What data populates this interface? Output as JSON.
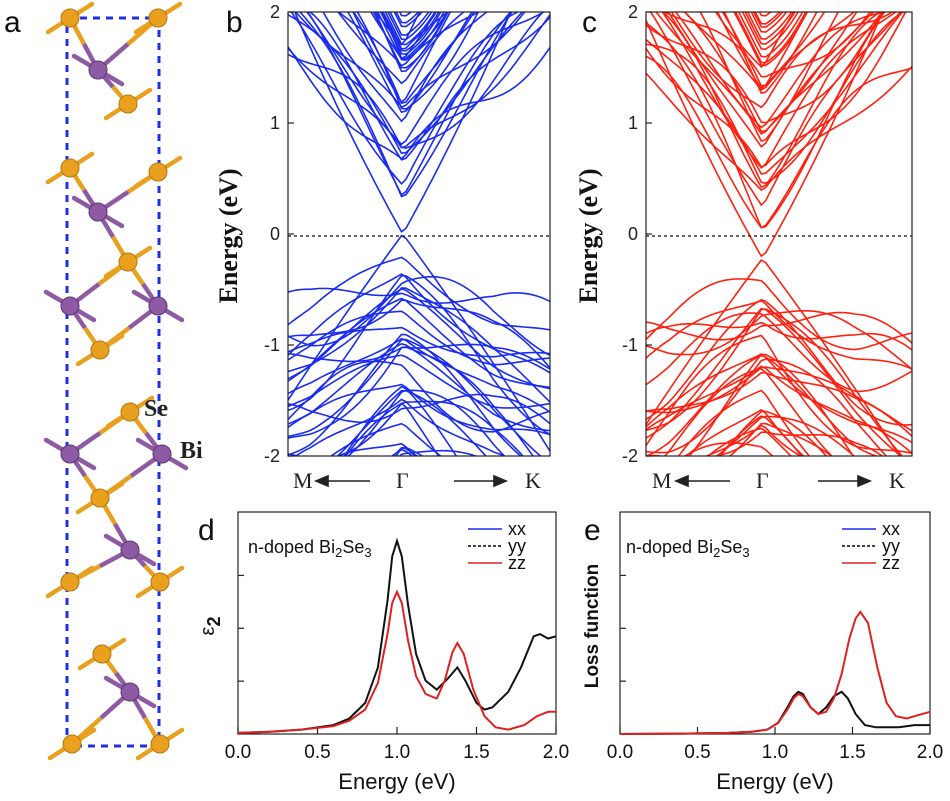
{
  "panel_labels": {
    "a": "a",
    "b": "b",
    "c": "c",
    "d": "d",
    "e": "e"
  },
  "structure": {
    "atom_labels": {
      "se": "Se",
      "bi": "Bi"
    },
    "colors": {
      "se": "#e8a01e",
      "bi": "#8e5aa3",
      "cell": "#1f2fe6"
    }
  },
  "chart_data": [
    {
      "id": "b",
      "type": "line",
      "subtype": "band-structure",
      "ylabel": "Energy (eV)",
      "ylim": [
        -2,
        2
      ],
      "yticks": [
        "2",
        "1",
        "0",
        "-1",
        "-2"
      ],
      "xticks": {
        "left": "M",
        "mid": "Γ",
        "right": "K"
      },
      "fermi_level": 0,
      "color": "#1a2cf0",
      "gap_at_gamma": 0.0
    },
    {
      "id": "c",
      "type": "line",
      "subtype": "band-structure",
      "ylabel": "Energy (eV)",
      "ylim": [
        -2,
        2
      ],
      "yticks": [
        "2",
        "1",
        "0",
        "-1",
        "-2"
      ],
      "xticks": {
        "left": "M",
        "mid": "Γ",
        "right": "K"
      },
      "fermi_level": 0,
      "color": "#ff2010",
      "dirac_point": -0.22
    },
    {
      "id": "d",
      "type": "line",
      "title": "n-doped Bi2Se3",
      "title_parts": {
        "pre": "n-doped Bi",
        "sub1": "2",
        "mid": "Se",
        "sub2": "3"
      },
      "xlabel": "Energy (eV)",
      "ylabel": "ε2",
      "ylabel_parts": {
        "main": "ε",
        "sub": "2"
      },
      "xlim": [
        0,
        2
      ],
      "xticks": [
        "0.0",
        "0.5",
        "1.0",
        "1.5",
        "2.0"
      ],
      "legend": [
        {
          "name": "xx",
          "color": "#1a2cf0",
          "dash": false
        },
        {
          "name": "yy",
          "color": "#000000",
          "dash": true
        },
        {
          "name": "zz",
          "color": "#e02020",
          "dash": false
        }
      ],
      "series": [
        {
          "name": "xx/yy",
          "color": "#111111",
          "points": [
            [
              0,
              0.005
            ],
            [
              0.2,
              0.01
            ],
            [
              0.4,
              0.02
            ],
            [
              0.6,
              0.04
            ],
            [
              0.7,
              0.07
            ],
            [
              0.8,
              0.14
            ],
            [
              0.88,
              0.3
            ],
            [
              0.94,
              0.6
            ],
            [
              0.97,
              0.8
            ],
            [
              1.0,
              0.87
            ],
            [
              1.03,
              0.8
            ],
            [
              1.07,
              0.58
            ],
            [
              1.12,
              0.36
            ],
            [
              1.18,
              0.24
            ],
            [
              1.25,
              0.2
            ],
            [
              1.32,
              0.25
            ],
            [
              1.38,
              0.3
            ],
            [
              1.43,
              0.24
            ],
            [
              1.5,
              0.14
            ],
            [
              1.55,
              0.11
            ],
            [
              1.6,
              0.12
            ],
            [
              1.7,
              0.19
            ],
            [
              1.78,
              0.3
            ],
            [
              1.86,
              0.44
            ],
            [
              1.9,
              0.45
            ],
            [
              1.95,
              0.43
            ],
            [
              2.0,
              0.44
            ]
          ]
        },
        {
          "name": "zz",
          "color": "#e02020",
          "points": [
            [
              0,
              0.005
            ],
            [
              0.2,
              0.01
            ],
            [
              0.4,
              0.02
            ],
            [
              0.6,
              0.035
            ],
            [
              0.7,
              0.06
            ],
            [
              0.8,
              0.11
            ],
            [
              0.88,
              0.23
            ],
            [
              0.94,
              0.45
            ],
            [
              0.97,
              0.59
            ],
            [
              1.0,
              0.64
            ],
            [
              1.03,
              0.59
            ],
            [
              1.07,
              0.42
            ],
            [
              1.12,
              0.26
            ],
            [
              1.18,
              0.18
            ],
            [
              1.25,
              0.16
            ],
            [
              1.3,
              0.24
            ],
            [
              1.35,
              0.37
            ],
            [
              1.38,
              0.41
            ],
            [
              1.42,
              0.36
            ],
            [
              1.48,
              0.2
            ],
            [
              1.55,
              0.08
            ],
            [
              1.62,
              0.03
            ],
            [
              1.7,
              0.02
            ],
            [
              1.8,
              0.04
            ],
            [
              1.88,
              0.08
            ],
            [
              1.95,
              0.1
            ],
            [
              2.0,
              0.1
            ]
          ]
        }
      ]
    },
    {
      "id": "e",
      "type": "line",
      "title": "n-doped Bi2Se3",
      "title_parts": {
        "pre": "n-doped Bi",
        "sub1": "2",
        "mid": "Se",
        "sub2": "3"
      },
      "xlabel": "Energy (eV)",
      "ylabel": "Loss function",
      "xlim": [
        0,
        2
      ],
      "xticks": [
        "0.0",
        "0.5",
        "1.0",
        "1.5",
        "2.0"
      ],
      "legend": [
        {
          "name": "xx",
          "color": "#1a2cf0",
          "dash": false
        },
        {
          "name": "yy",
          "color": "#000000",
          "dash": true
        },
        {
          "name": "zz",
          "color": "#e02020",
          "dash": false
        }
      ],
      "series": [
        {
          "name": "xx/yy",
          "color": "#111111",
          "points": [
            [
              0,
              0.0
            ],
            [
              0.4,
              0.002
            ],
            [
              0.7,
              0.005
            ],
            [
              0.85,
              0.01
            ],
            [
              0.95,
              0.02
            ],
            [
              1.02,
              0.05
            ],
            [
              1.08,
              0.12
            ],
            [
              1.12,
              0.17
            ],
            [
              1.15,
              0.19
            ],
            [
              1.18,
              0.18
            ],
            [
              1.23,
              0.12
            ],
            [
              1.28,
              0.09
            ],
            [
              1.33,
              0.12
            ],
            [
              1.38,
              0.17
            ],
            [
              1.43,
              0.19
            ],
            [
              1.47,
              0.16
            ],
            [
              1.52,
              0.09
            ],
            [
              1.58,
              0.04
            ],
            [
              1.65,
              0.03
            ],
            [
              1.8,
              0.03
            ],
            [
              1.9,
              0.04
            ],
            [
              2.0,
              0.04
            ]
          ]
        },
        {
          "name": "zz",
          "color": "#e02020",
          "points": [
            [
              0,
              0.0
            ],
            [
              0.4,
              0.002
            ],
            [
              0.7,
              0.005
            ],
            [
              0.85,
              0.01
            ],
            [
              0.95,
              0.02
            ],
            [
              1.02,
              0.05
            ],
            [
              1.08,
              0.11
            ],
            [
              1.12,
              0.16
            ],
            [
              1.15,
              0.18
            ],
            [
              1.18,
              0.17
            ],
            [
              1.23,
              0.12
            ],
            [
              1.28,
              0.09
            ],
            [
              1.33,
              0.1
            ],
            [
              1.38,
              0.16
            ],
            [
              1.43,
              0.27
            ],
            [
              1.48,
              0.43
            ],
            [
              1.52,
              0.52
            ],
            [
              1.55,
              0.55
            ],
            [
              1.6,
              0.5
            ],
            [
              1.66,
              0.3
            ],
            [
              1.72,
              0.14
            ],
            [
              1.78,
              0.08
            ],
            [
              1.85,
              0.07
            ],
            [
              1.9,
              0.08
            ],
            [
              2.0,
              0.1
            ]
          ]
        }
      ]
    }
  ]
}
